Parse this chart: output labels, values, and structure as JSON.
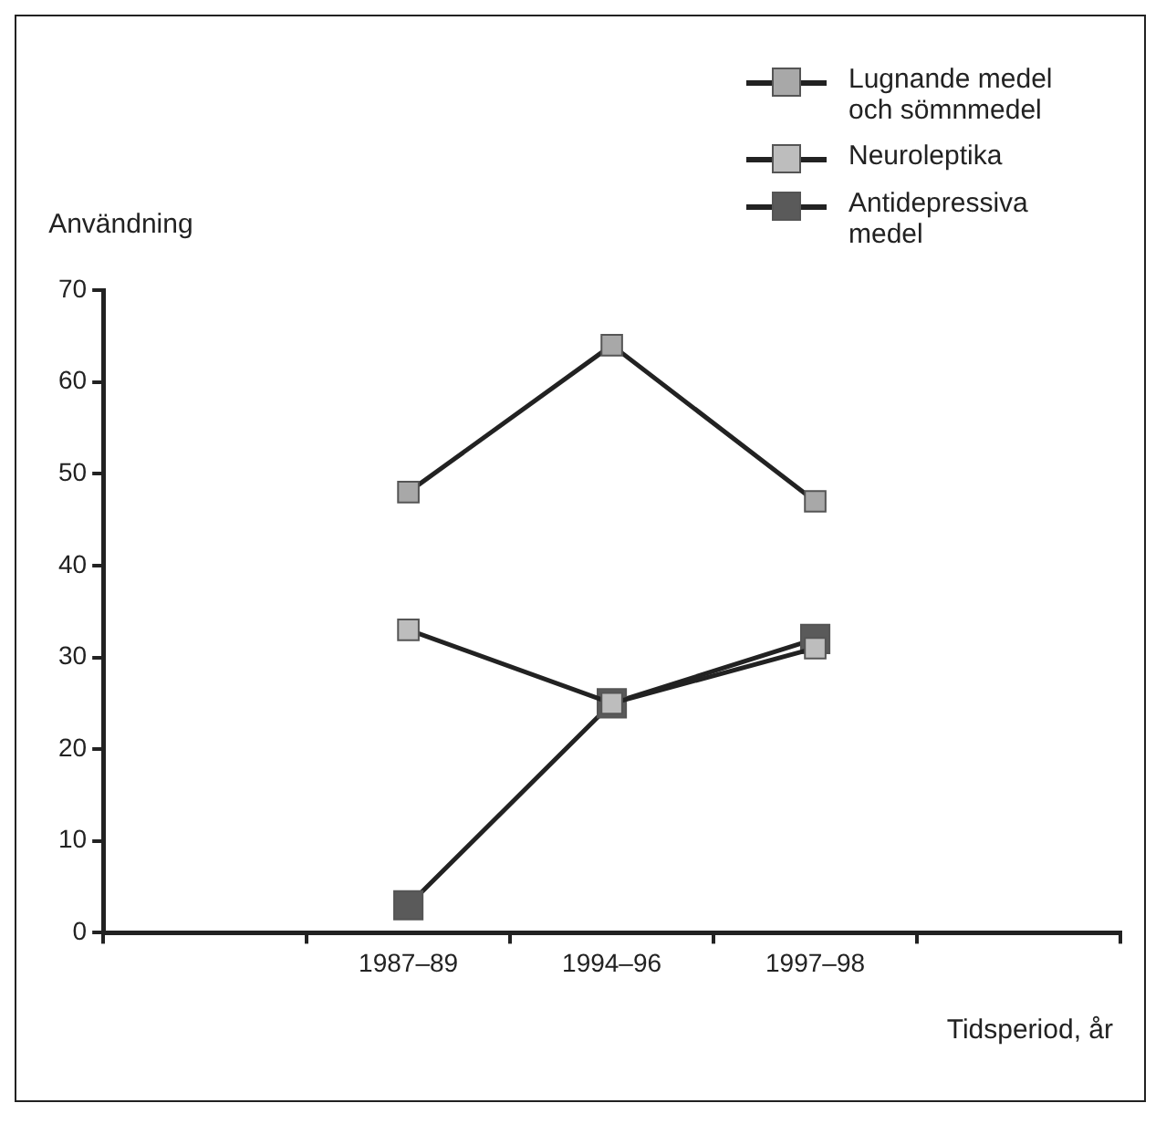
{
  "chart_data": {
    "type": "line",
    "xlabel": "Tidsperiod, år",
    "ylabel": "Användning",
    "categories": [
      null,
      "1987–89",
      "1994–96",
      "1997–98",
      null
    ],
    "series": [
      {
        "name": "Lugnande medel och sömnmedel",
        "color": "#a8a8a8",
        "values": [
          null,
          48,
          64,
          47,
          null
        ]
      },
      {
        "name": "Neuroleptika",
        "color": "#bdbdbd",
        "values": [
          null,
          33,
          25,
          31,
          null
        ]
      },
      {
        "name": "Antidepressiva medel",
        "color": "#5a5a5a",
        "values": [
          null,
          3,
          25,
          32,
          null
        ]
      }
    ],
    "ylim": [
      0,
      70
    ],
    "yticks": [
      0,
      10,
      20,
      30,
      40,
      50,
      60,
      70
    ],
    "grid": false,
    "legend": "top right",
    "marker": "square",
    "line_style": "solid"
  }
}
